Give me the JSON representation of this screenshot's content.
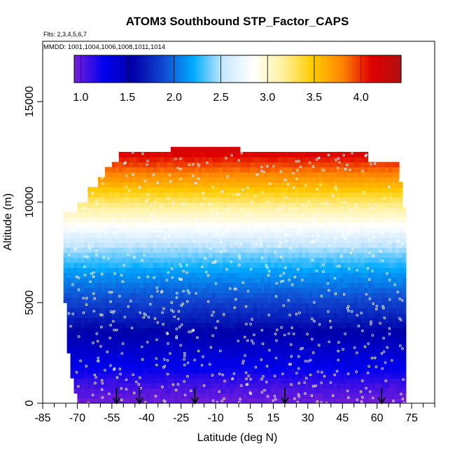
{
  "chart_data": {
    "type": "heatmap",
    "title": "ATOM3 Southbound STP_Factor_CAPS",
    "subtitle_flights": "Flts: 2,3,4,5,6,7",
    "subtitle_dates": "MMDD: 1001,1004,1006,1008,1011,1014",
    "xlabel": "Latitude (deg N)",
    "ylabel": "Altitude (m)",
    "xlim": [
      -85,
      85
    ],
    "ylim": [
      0,
      18000
    ],
    "x_ticks": [
      -85,
      -70,
      -55,
      -40,
      -25,
      -10,
      5,
      15,
      30,
      45,
      60,
      75
    ],
    "x_minor_ticks": [
      -80,
      -75,
      -65,
      -60,
      -50,
      -45,
      -35,
      -30,
      -20,
      -15,
      -5,
      0,
      10,
      20,
      25,
      35,
      40,
      50,
      55,
      65,
      70,
      80,
      85
    ],
    "y_ticks": [
      0,
      5000,
      10000,
      15000
    ],
    "colorbar": {
      "min": 0.93,
      "max": 4.43,
      "ticks": [
        1.0,
        1.5,
        2.0,
        2.5,
        3.0,
        3.5,
        4.0
      ],
      "tick_labels": [
        "1.0",
        "1.5",
        "2.0",
        "2.5",
        "3.0",
        "3.5",
        "4.0"
      ],
      "colors": [
        "#7a1fd8",
        "#0000ee",
        "#0000a8",
        "#1148d0",
        "#00aaff",
        "#c8e8ff",
        "#ffffff",
        "#fff2a0",
        "#ffcc00",
        "#ff8800",
        "#e00000",
        "#b01010"
      ]
    },
    "value_vs_altitude": [
      {
        "alt": 0,
        "value": 0.95
      },
      {
        "alt": 1000,
        "value": 1.1
      },
      {
        "alt": 2000,
        "value": 1.3
      },
      {
        "alt": 3500,
        "value": 1.55
      },
      {
        "alt": 5000,
        "value": 1.85
      },
      {
        "alt": 6500,
        "value": 2.15
      },
      {
        "alt": 8000,
        "value": 2.55
      },
      {
        "alt": 9000,
        "value": 2.9
      },
      {
        "alt": 10000,
        "value": 3.25
      },
      {
        "alt": 11000,
        "value": 3.65
      },
      {
        "alt": 12000,
        "value": 4.0
      },
      {
        "alt": 13000,
        "value": 4.3
      }
    ],
    "coverage_top_altitude": [
      {
        "lat": -74,
        "alt": 9600
      },
      {
        "lat": -70,
        "alt": 10200
      },
      {
        "lat": -65,
        "alt": 10800
      },
      {
        "lat": -61,
        "alt": 11300
      },
      {
        "lat": -58,
        "alt": 11800
      },
      {
        "lat": -55,
        "alt": 12000
      },
      {
        "lat": -52,
        "alt": 12500
      },
      {
        "lat": -30,
        "alt": 12500
      },
      {
        "lat": -29,
        "alt": 12900
      },
      {
        "lat": -1,
        "alt": 12900
      },
      {
        "lat": 0,
        "alt": 12500
      },
      {
        "lat": 55,
        "alt": 12500
      },
      {
        "lat": 56,
        "alt": 12000
      },
      {
        "lat": 69,
        "alt": 12000
      },
      {
        "lat": 70,
        "alt": 11200
      },
      {
        "lat": 71,
        "alt": 9800
      }
    ],
    "coverage_bottom_latitude": [
      {
        "alt": 9600,
        "lat": -74.5
      },
      {
        "alt": 5000,
        "lat": -74.5
      },
      {
        "alt": 3000,
        "lat": -73.5
      },
      {
        "alt": 1500,
        "lat": -72
      },
      {
        "alt": 0,
        "lat": -69
      }
    ],
    "coverage_right_latitude": [
      {
        "alt": 0,
        "lat": 72
      },
      {
        "alt": 3000,
        "lat": 72
      },
      {
        "alt": 6000,
        "lat": 71.5
      },
      {
        "alt": 9800,
        "lat": 71
      }
    ],
    "profile_arrows_lat": [
      -53,
      -43,
      -19,
      20,
      62
    ]
  }
}
